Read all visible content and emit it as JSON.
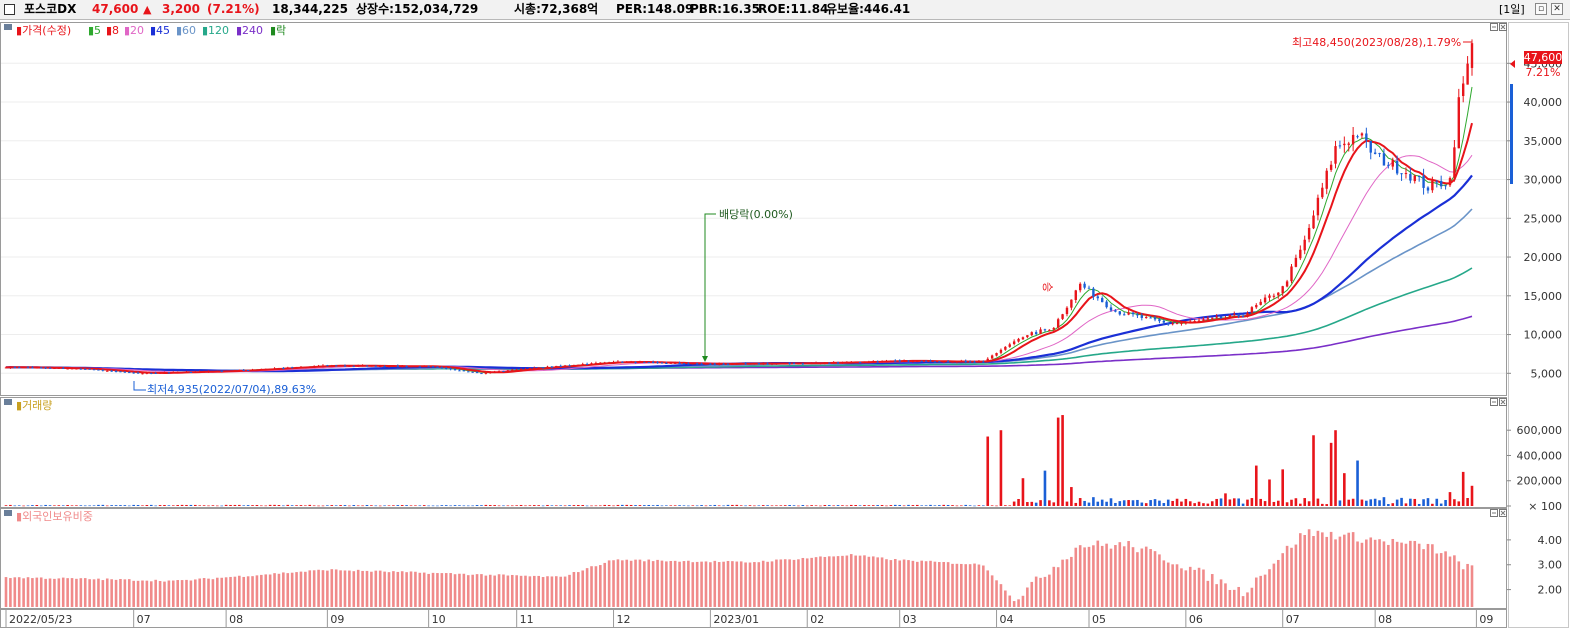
{
  "header": {
    "name": "포스코DX",
    "price": "47,600",
    "change_arrow": "▲",
    "change": "3,200",
    "change_pct": "(7.21%)",
    "volume": "18,344,225",
    "listed_shares": "상장수:152,034,729",
    "market_cap": "시총:72,368억",
    "per": "PER:148.09",
    "pbr": "PBR:16.35",
    "roe": "ROE:11.84",
    "reserve_ratio": "유보율:446.41",
    "period": "[1일]",
    "window_buttons": [
      "▫",
      "✕"
    ]
  },
  "colors": {
    "up": "#e8141a",
    "down": "#1a5fd6",
    "ma5": "#2ea82e",
    "ma8": "#e8141a",
    "ma20": "#e066c6",
    "ma45": "#1a2fd6",
    "ma60": "#6a94c8",
    "ma120": "#26a88a",
    "ma240": "#7a2fc8",
    "ex_dividend": "#1f8a1f",
    "foreign": "#f08a8a"
  },
  "price_panel": {
    "legend": {
      "price": "가격(수정)",
      "ma": [
        {
          "label": "5",
          "color": "#2ea82e"
        },
        {
          "label": "8",
          "color": "#e8141a"
        },
        {
          "label": "20",
          "color": "#e066c6"
        },
        {
          "label": "45",
          "color": "#1a2fd6"
        },
        {
          "label": "60",
          "color": "#6a94c8"
        },
        {
          "label": "120",
          "color": "#26a88a"
        },
        {
          "label": "240",
          "color": "#7a2fc8"
        }
      ],
      "event": "락"
    },
    "high_annotation": "최고48,450(2023/08/28),1.79%",
    "low_annotation": "최저4,935(2022/07/04),89.63%",
    "ex_dividend_annotation": "배당락(0.00%)",
    "current_price_label": "47,600",
    "current_pct_label": "7.21%",
    "marker_label": "승"
  },
  "volume_panel": {
    "title": "거래량"
  },
  "foreign_panel": {
    "title": "외국인보유비중"
  },
  "x_axis": {
    "months": [
      {
        "label": "2022/05/23",
        "date": "2022-05-23"
      },
      {
        "label": "07",
        "date": "2022-07-01"
      },
      {
        "label": "08",
        "date": "2022-08-01"
      },
      {
        "label": "09",
        "date": "2022-09-01"
      },
      {
        "label": "10",
        "date": "2022-10-04"
      },
      {
        "label": "11",
        "date": "2022-11-01"
      },
      {
        "label": "12",
        "date": "2022-12-01"
      },
      {
        "label": "2023/01",
        "date": "2023-01-02"
      },
      {
        "label": "02",
        "date": "2023-02-01"
      },
      {
        "label": "03",
        "date": "2023-03-02"
      },
      {
        "label": "04",
        "date": "2023-04-03"
      },
      {
        "label": "05",
        "date": "2023-05-02"
      },
      {
        "label": "06",
        "date": "2023-06-01"
      },
      {
        "label": "07",
        "date": "2023-07-03"
      },
      {
        "label": "08",
        "date": "2023-08-01"
      },
      {
        "label": "09",
        "date": "2023-09-01"
      }
    ]
  },
  "chart_data": [
    {
      "type": "line",
      "title": "",
      "xlabel": "",
      "ylabel": "",
      "x": [
        "2022-05-23",
        "2022-06-15",
        "2022-07-04",
        "2022-08-01",
        "2022-09-01",
        "2022-10-04",
        "2022-10-20",
        "2022-11-01",
        "2022-12-01",
        "2023-01-02",
        "2023-02-01",
        "2023-03-02",
        "2023-03-29",
        "2023-04-10",
        "2023-04-20",
        "2023-04-28",
        "2023-05-10",
        "2023-05-25",
        "2023-06-01",
        "2023-06-20",
        "2023-07-03",
        "2023-07-10",
        "2023-07-19",
        "2023-07-26",
        "2023-08-01",
        "2023-08-10",
        "2023-08-17",
        "2023-08-24",
        "2023-08-28",
        "2023-08-30",
        "2023-08-31"
      ],
      "series": [
        {
          "name": "가격(수정)",
          "values": [
            5800,
            5600,
            5000,
            5300,
            6000,
            5900,
            5000,
            5500,
            6500,
            6200,
            6300,
            6600,
            6500,
            9500,
            11000,
            16500,
            13000,
            11500,
            11500,
            12500,
            16000,
            22000,
            34000,
            36000,
            33000,
            31000,
            29000,
            30000,
            40000,
            44400,
            47600
          ]
        }
      ],
      "yticks": [
        5000,
        10000,
        15000,
        20000,
        25000,
        30000,
        35000,
        40000,
        45000
      ],
      "ylim": [
        2200,
        50200
      ],
      "high": {
        "value": 48450,
        "date": "2023-08-28"
      },
      "low": {
        "value": 4935,
        "date": "2022-07-04"
      },
      "ex_dividend_date": "2022-12-28"
    },
    {
      "type": "bar",
      "title": "",
      "x": [
        "2023-03-30",
        "2023-04-04",
        "2023-04-11",
        "2023-04-18",
        "2023-04-21",
        "2023-04-24",
        "2023-04-26",
        "2023-05-03",
        "2023-06-14",
        "2023-06-23",
        "2023-06-28",
        "2023-07-03",
        "2023-07-12",
        "2023-07-18",
        "2023-07-19",
        "2023-07-21",
        "2023-07-26",
        "2023-08-03",
        "2023-08-24",
        "2023-08-29",
        "2023-08-31"
      ],
      "series": [
        {
          "name": "거래량",
          "values": [
            550000,
            600000,
            220000,
            280000,
            700000,
            720000,
            150000,
            70000,
            100000,
            320000,
            210000,
            290000,
            560000,
            500000,
            600000,
            260000,
            360000,
            70000,
            110000,
            270000,
            160000
          ]
        }
      ],
      "yticks": [
        100,
        200000,
        400000,
        600000
      ],
      "ylim": [
        0,
        760000
      ]
    },
    {
      "type": "bar",
      "title": "",
      "x": [
        "2022-05-23",
        "2022-07-15",
        "2022-09-01",
        "2022-11-15",
        "2022-12-01",
        "2023-01-15",
        "2023-02-15",
        "2023-03-01",
        "2023-03-29",
        "2023-04-07",
        "2023-04-28",
        "2023-05-15",
        "2023-05-30",
        "2023-06-20",
        "2023-07-10",
        "2023-07-20",
        "2023-08-01",
        "2023-08-20",
        "2023-08-31"
      ],
      "series": [
        {
          "name": "외국인보유비중",
          "values": [
            2.5,
            2.35,
            2.8,
            2.5,
            3.2,
            3.1,
            3.4,
            3.2,
            3.0,
            1.6,
            3.8,
            3.8,
            3.1,
            1.9,
            4.3,
            4.2,
            4.0,
            3.7,
            2.8
          ]
        }
      ],
      "yticks": [
        2.0,
        3.0,
        4.0
      ],
      "ylim": [
        1.3,
        4.8
      ]
    }
  ]
}
